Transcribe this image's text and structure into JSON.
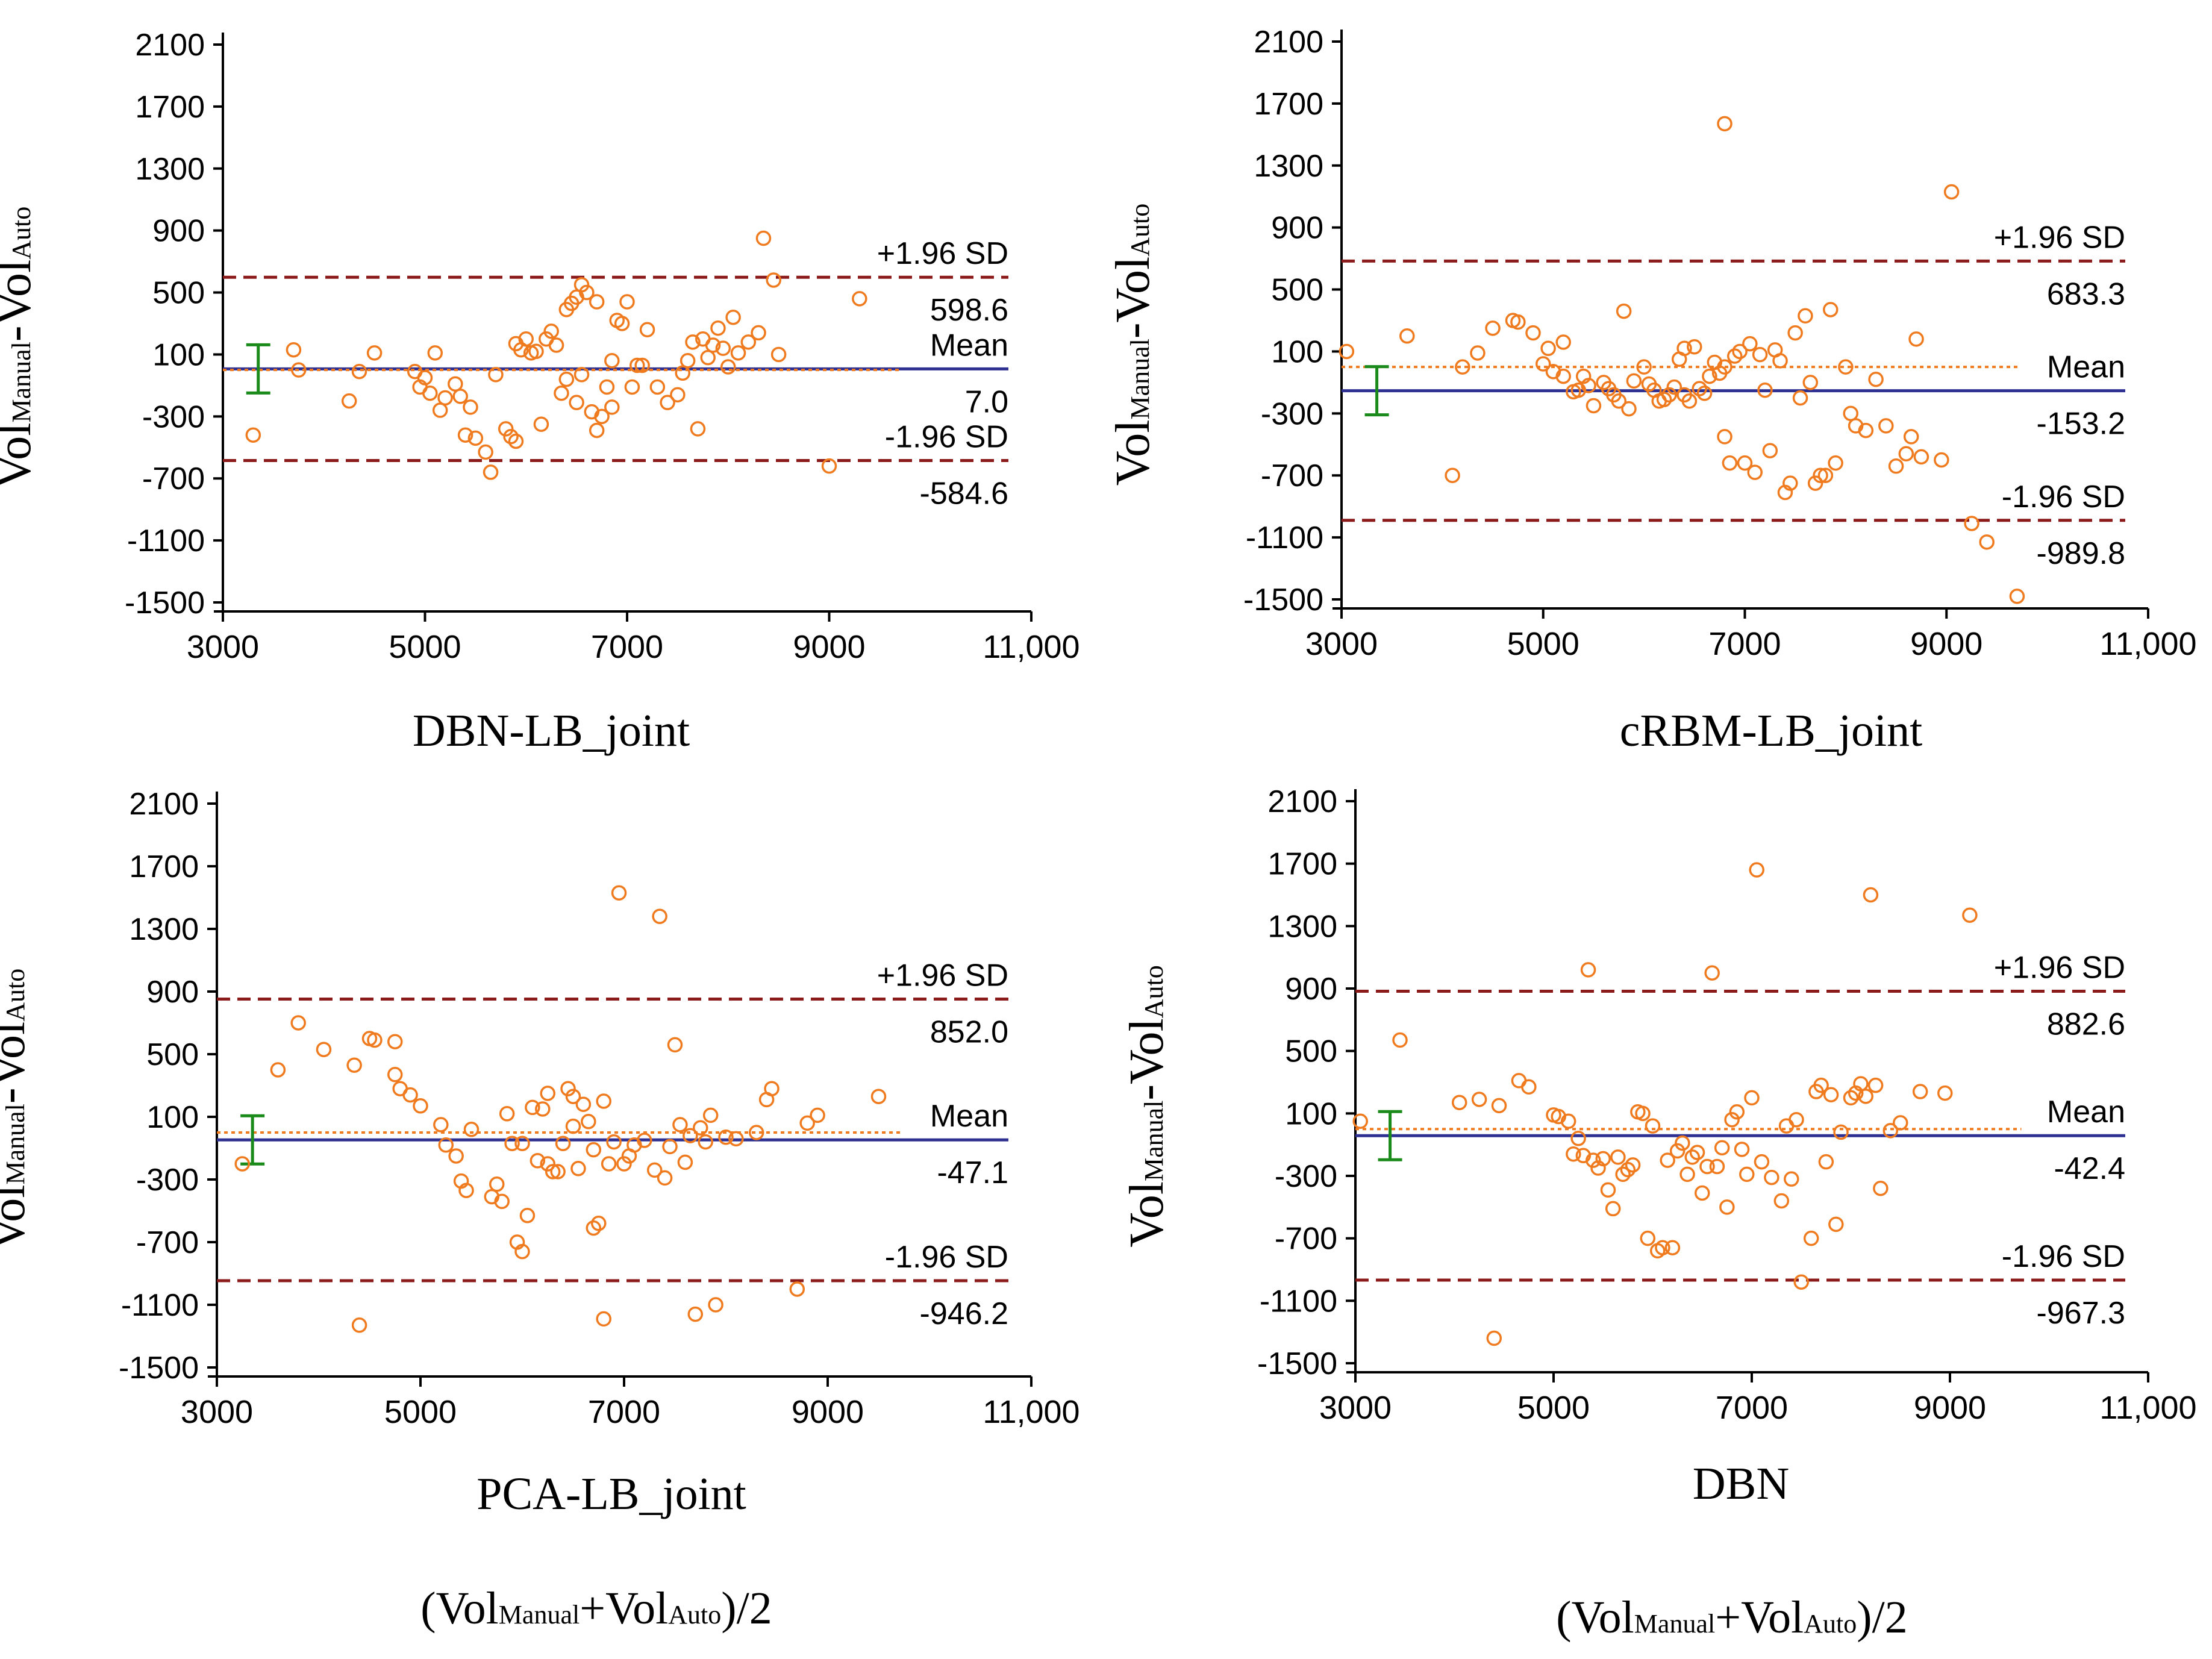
{
  "figure": {
    "xlabel_parts": {
      "open": "(Vol",
      "sub1": "Manual",
      "plus": "+Vol",
      "sub2": "Auto",
      "close": ")/2"
    },
    "ylabel_parts": {
      "main1": "Vol",
      "sub1": "Manual",
      "dash": "-Vol",
      "sub2": "Auto"
    },
    "colors": {
      "points": "#F07A1E",
      "mean_line": "#2E3192",
      "sd_line": "#8B1A1A",
      "bias_dotted": "#F07A1E",
      "error_bar": "#1A8A1A",
      "axis": "#000000"
    }
  },
  "chart_data": [
    {
      "type": "scatter",
      "title": "DBN-LB_joint",
      "xlim": [
        3000,
        11000
      ],
      "ylim": [
        -1500,
        2100
      ],
      "xticks": [
        "3000",
        "5000",
        "7000",
        "9000",
        "11,000"
      ],
      "yticks": [
        "2100",
        "1700",
        "1300",
        "900",
        "500",
        "100",
        "-300",
        "-700",
        "-1100",
        "-1500"
      ],
      "mean": 7.0,
      "upper": 598.6,
      "lower": -584.6,
      "label_upper": "+1.96 SD",
      "label_mean": "Mean",
      "label_lower": "-1.96 SD",
      "value_upper": "598.6",
      "value_mean": "7.0",
      "value_lower": "-584.6",
      "points": [
        [
          3300,
          -420
        ],
        [
          3700,
          130
        ],
        [
          3750,
          0
        ],
        [
          4250,
          -200
        ],
        [
          4350,
          -10
        ],
        [
          4500,
          110
        ],
        [
          4900,
          -10
        ],
        [
          4950,
          -110
        ],
        [
          5000,
          -50
        ],
        [
          5050,
          -150
        ],
        [
          5100,
          110
        ],
        [
          5150,
          -260
        ],
        [
          5200,
          -180
        ],
        [
          5300,
          -90
        ],
        [
          5350,
          -170
        ],
        [
          5400,
          -420
        ],
        [
          5450,
          -240
        ],
        [
          5500,
          -440
        ],
        [
          5600,
          -530
        ],
        [
          5650,
          -660
        ],
        [
          5700,
          -30
        ],
        [
          5800,
          -380
        ],
        [
          5850,
          -430
        ],
        [
          5900,
          -460
        ],
        [
          5900,
          170
        ],
        [
          5950,
          130
        ],
        [
          6000,
          200
        ],
        [
          6050,
          110
        ],
        [
          6100,
          120
        ],
        [
          6150,
          -350
        ],
        [
          6200,
          200
        ],
        [
          6250,
          250
        ],
        [
          6300,
          160
        ],
        [
          6350,
          -150
        ],
        [
          6400,
          -60
        ],
        [
          6400,
          390
        ],
        [
          6450,
          430
        ],
        [
          6500,
          470
        ],
        [
          6500,
          -210
        ],
        [
          6550,
          550
        ],
        [
          6550,
          -30
        ],
        [
          6600,
          500
        ],
        [
          6650,
          -270
        ],
        [
          6700,
          -390
        ],
        [
          6700,
          440
        ],
        [
          6750,
          -300
        ],
        [
          6800,
          -110
        ],
        [
          6850,
          -240
        ],
        [
          6850,
          60
        ],
        [
          6900,
          320
        ],
        [
          6950,
          300
        ],
        [
          7000,
          440
        ],
        [
          7050,
          -110
        ],
        [
          7100,
          30
        ],
        [
          7150,
          30
        ],
        [
          7200,
          260
        ],
        [
          7300,
          -110
        ],
        [
          7400,
          -210
        ],
        [
          7500,
          -160
        ],
        [
          7550,
          -20
        ],
        [
          7600,
          60
        ],
        [
          7650,
          180
        ],
        [
          7700,
          -380
        ],
        [
          7750,
          200
        ],
        [
          7800,
          80
        ],
        [
          7850,
          160
        ],
        [
          7900,
          270
        ],
        [
          7950,
          140
        ],
        [
          8000,
          20
        ],
        [
          8050,
          340
        ],
        [
          8100,
          110
        ],
        [
          8200,
          180
        ],
        [
          8300,
          240
        ],
        [
          8350,
          850
        ],
        [
          8450,
          580
        ],
        [
          8500,
          100
        ],
        [
          9000,
          -620
        ],
        [
          9300,
          460
        ]
      ]
    },
    {
      "type": "scatter",
      "title": "cRBM-LB_joint",
      "xlim": [
        3000,
        11000
      ],
      "ylim": [
        -1500,
        2100
      ],
      "xticks": [
        "3000",
        "5000",
        "7000",
        "9000",
        "11,000"
      ],
      "yticks": [
        "2100",
        "1700",
        "1300",
        "900",
        "500",
        "100",
        "-300",
        "-700",
        "-1100",
        "-1500"
      ],
      "mean": -153.2,
      "upper": 683.3,
      "lower": -989.8,
      "label_upper": "+1.96 SD",
      "label_mean": "Mean",
      "label_lower": "-1.96 SD",
      "value_upper": "683.3",
      "value_mean": "-153.2",
      "value_lower": "-989.8",
      "points": [
        [
          3050,
          100
        ],
        [
          3650,
          200
        ],
        [
          4100,
          -700
        ],
        [
          4200,
          0
        ],
        [
          4350,
          90
        ],
        [
          4500,
          250
        ],
        [
          4700,
          300
        ],
        [
          4750,
          290
        ],
        [
          4900,
          220
        ],
        [
          5000,
          20
        ],
        [
          5050,
          120
        ],
        [
          5100,
          -30
        ],
        [
          5200,
          160
        ],
        [
          5200,
          -60
        ],
        [
          5300,
          -160
        ],
        [
          5350,
          -150
        ],
        [
          5400,
          -60
        ],
        [
          5450,
          -120
        ],
        [
          5500,
          -250
        ],
        [
          5600,
          -100
        ],
        [
          5650,
          -140
        ],
        [
          5700,
          -180
        ],
        [
          5750,
          -220
        ],
        [
          5800,
          360
        ],
        [
          5850,
          -270
        ],
        [
          5900,
          -90
        ],
        [
          6000,
          0
        ],
        [
          6050,
          -110
        ],
        [
          6100,
          -150
        ],
        [
          6150,
          -220
        ],
        [
          6200,
          -210
        ],
        [
          6250,
          -180
        ],
        [
          6300,
          -130
        ],
        [
          6350,
          50
        ],
        [
          6400,
          120
        ],
        [
          6400,
          -180
        ],
        [
          6450,
          -220
        ],
        [
          6500,
          130
        ],
        [
          6550,
          -140
        ],
        [
          6600,
          -170
        ],
        [
          6650,
          -60
        ],
        [
          6700,
          30
        ],
        [
          6750,
          -40
        ],
        [
          6800,
          0
        ],
        [
          6800,
          -450
        ],
        [
          6850,
          -620
        ],
        [
          6900,
          70
        ],
        [
          6950,
          100
        ],
        [
          7000,
          -620
        ],
        [
          7050,
          150
        ],
        [
          7100,
          -680
        ],
        [
          7150,
          80
        ],
        [
          7200,
          -150
        ],
        [
          7250,
          -540
        ],
        [
          7300,
          110
        ],
        [
          7350,
          40
        ],
        [
          7400,
          -810
        ],
        [
          7450,
          -750
        ],
        [
          7500,
          220
        ],
        [
          7550,
          -200
        ],
        [
          7600,
          330
        ],
        [
          7650,
          -100
        ],
        [
          7700,
          -750
        ],
        [
          7750,
          -700
        ],
        [
          7800,
          -700
        ],
        [
          7850,
          370
        ],
        [
          7900,
          -620
        ],
        [
          8000,
          0
        ],
        [
          8050,
          -300
        ],
        [
          8100,
          -380
        ],
        [
          8200,
          -410
        ],
        [
          8300,
          -80
        ],
        [
          8400,
          -380
        ],
        [
          8500,
          -640
        ],
        [
          8600,
          -560
        ],
        [
          8650,
          -450
        ],
        [
          8700,
          180
        ],
        [
          8750,
          -580
        ],
        [
          8950,
          -600
        ],
        [
          9050,
          1130
        ],
        [
          9250,
          -1010
        ],
        [
          9400,
          -1130
        ],
        [
          9700,
          -1480
        ],
        [
          6800,
          1570
        ]
      ]
    },
    {
      "type": "scatter",
      "title": "PCA-LB_joint",
      "xlim": [
        3000,
        11000
      ],
      "ylim": [
        -1500,
        2100
      ],
      "xticks": [
        "3000",
        "5000",
        "7000",
        "9000",
        "11,000"
      ],
      "yticks": [
        "2100",
        "1700",
        "1300",
        "900",
        "500",
        "100",
        "-300",
        "-700",
        "-1100",
        "-1500"
      ],
      "mean": -47.1,
      "upper": 852.0,
      "lower": -946.2,
      "label_upper": "+1.96 SD",
      "label_mean": "Mean",
      "label_lower": "-1.96 SD",
      "value_upper": "852.0",
      "value_mean": "-47.1",
      "value_lower": "-946.2",
      "points": [
        [
          3250,
          -200
        ],
        [
          3600,
          400
        ],
        [
          3800,
          700
        ],
        [
          4050,
          530
        ],
        [
          4350,
          430
        ],
        [
          4400,
          -1230
        ],
        [
          4500,
          600
        ],
        [
          4550,
          590
        ],
        [
          4750,
          580
        ],
        [
          4750,
          370
        ],
        [
          4800,
          280
        ],
        [
          4900,
          240
        ],
        [
          5000,
          170
        ],
        [
          5200,
          50
        ],
        [
          5250,
          -80
        ],
        [
          5350,
          -150
        ],
        [
          5400,
          -310
        ],
        [
          5450,
          -370
        ],
        [
          5500,
          20
        ],
        [
          5700,
          -410
        ],
        [
          5750,
          -330
        ],
        [
          5800,
          -440
        ],
        [
          5850,
          120
        ],
        [
          5900,
          -70
        ],
        [
          5950,
          -700
        ],
        [
          6000,
          -760
        ],
        [
          6000,
          -70
        ],
        [
          6050,
          -530
        ],
        [
          6100,
          160
        ],
        [
          6150,
          -180
        ],
        [
          6200,
          150
        ],
        [
          6250,
          250
        ],
        [
          6250,
          -200
        ],
        [
          6300,
          -250
        ],
        [
          6350,
          -250
        ],
        [
          6400,
          -70
        ],
        [
          6450,
          280
        ],
        [
          6500,
          230
        ],
        [
          6500,
          40
        ],
        [
          6550,
          -230
        ],
        [
          6600,
          180
        ],
        [
          6650,
          70
        ],
        [
          6700,
          -110
        ],
        [
          6700,
          -610
        ],
        [
          6750,
          -580
        ],
        [
          6800,
          200
        ],
        [
          6800,
          -1190
        ],
        [
          6850,
          -200
        ],
        [
          6900,
          -60
        ],
        [
          6950,
          1530
        ],
        [
          7000,
          -200
        ],
        [
          7050,
          -150
        ],
        [
          7100,
          -80
        ],
        [
          7200,
          -50
        ],
        [
          7300,
          -240
        ],
        [
          7350,
          1380
        ],
        [
          7400,
          -290
        ],
        [
          7450,
          -90
        ],
        [
          7500,
          560
        ],
        [
          7550,
          50
        ],
        [
          7600,
          -190
        ],
        [
          7650,
          -20
        ],
        [
          7700,
          -1160
        ],
        [
          7750,
          30
        ],
        [
          7800,
          -60
        ],
        [
          7850,
          110
        ],
        [
          7900,
          -1100
        ],
        [
          8000,
          -30
        ],
        [
          8100,
          -40
        ],
        [
          8300,
          0
        ],
        [
          8400,
          210
        ],
        [
          8450,
          280
        ],
        [
          8700,
          -1000
        ],
        [
          8800,
          60
        ],
        [
          8900,
          110
        ],
        [
          9500,
          230
        ]
      ]
    },
    {
      "type": "scatter",
      "title": "DBN",
      "xlim": [
        3000,
        11000
      ],
      "ylim": [
        -1500,
        2100
      ],
      "xticks": [
        "3000",
        "5000",
        "7000",
        "9000",
        "11,000"
      ],
      "yticks": [
        "2100",
        "1700",
        "1300",
        "900",
        "500",
        "100",
        "-300",
        "-700",
        "-1100",
        "-1500"
      ],
      "mean": -42.4,
      "upper": 882.6,
      "lower": -967.3,
      "label_upper": "+1.96 SD",
      "label_mean": "Mean",
      "label_lower": "-1.96 SD",
      "value_upper": "882.6",
      "value_mean": "-42.4",
      "value_lower": "-967.3",
      "points": [
        [
          3050,
          50
        ],
        [
          3450,
          570
        ],
        [
          4050,
          170
        ],
        [
          4250,
          190
        ],
        [
          4400,
          -1340
        ],
        [
          4450,
          150
        ],
        [
          4650,
          310
        ],
        [
          4750,
          270
        ],
        [
          5000,
          90
        ],
        [
          5050,
          80
        ],
        [
          5150,
          50
        ],
        [
          5200,
          -160
        ],
        [
          5250,
          -60
        ],
        [
          5300,
          -170
        ],
        [
          5350,
          1020
        ],
        [
          5400,
          -200
        ],
        [
          5450,
          -250
        ],
        [
          5500,
          -190
        ],
        [
          5550,
          -390
        ],
        [
          5600,
          -510
        ],
        [
          5650,
          -180
        ],
        [
          5700,
          -290
        ],
        [
          5750,
          -260
        ],
        [
          5800,
          -230
        ],
        [
          5850,
          110
        ],
        [
          5900,
          100
        ],
        [
          5950,
          -700
        ],
        [
          6000,
          20
        ],
        [
          6050,
          -780
        ],
        [
          6100,
          -760
        ],
        [
          6150,
          -200
        ],
        [
          6200,
          -760
        ],
        [
          6250,
          -140
        ],
        [
          6300,
          -90
        ],
        [
          6350,
          -290
        ],
        [
          6400,
          -180
        ],
        [
          6450,
          -150
        ],
        [
          6500,
          -410
        ],
        [
          6550,
          -240
        ],
        [
          6600,
          1000
        ],
        [
          6650,
          -240
        ],
        [
          6700,
          -120
        ],
        [
          6750,
          -500
        ],
        [
          6800,
          60
        ],
        [
          6850,
          110
        ],
        [
          6900,
          -130
        ],
        [
          6950,
          -290
        ],
        [
          7000,
          200
        ],
        [
          7050,
          1660
        ],
        [
          7100,
          -210
        ],
        [
          7200,
          -310
        ],
        [
          7300,
          -460
        ],
        [
          7350,
          20
        ],
        [
          7400,
          -320
        ],
        [
          7450,
          60
        ],
        [
          7500,
          -980
        ],
        [
          7600,
          -700
        ],
        [
          7650,
          240
        ],
        [
          7700,
          280
        ],
        [
          7750,
          -210
        ],
        [
          7800,
          220
        ],
        [
          7850,
          -610
        ],
        [
          7900,
          -20
        ],
        [
          8000,
          200
        ],
        [
          8050,
          230
        ],
        [
          8100,
          290
        ],
        [
          8150,
          210
        ],
        [
          8200,
          1500
        ],
        [
          8250,
          280
        ],
        [
          8300,
          -380
        ],
        [
          8400,
          -10
        ],
        [
          8500,
          40
        ],
        [
          8700,
          240
        ],
        [
          8950,
          230
        ],
        [
          9200,
          1370
        ]
      ]
    }
  ]
}
